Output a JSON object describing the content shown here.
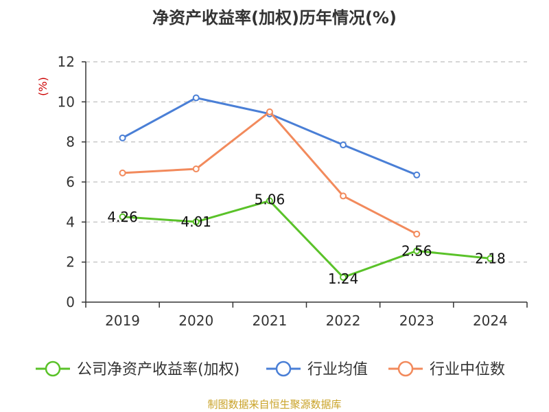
{
  "chart_data": {
    "type": "line",
    "title": "净资产收益率(加权)历年情况(%)",
    "ylabel": "(%)",
    "categories": [
      "2019",
      "2020",
      "2021",
      "2022",
      "2023",
      "2024"
    ],
    "ylim": [
      0,
      12
    ],
    "yticks": [
      "0",
      "2",
      "4",
      "6",
      "8",
      "10",
      "12"
    ],
    "grid": "horizontal-dashed",
    "legend_position": "bottom",
    "series": [
      {
        "name": "公司净资产收益率(加权)",
        "color": "#5ac229",
        "values": [
          4.26,
          4.01,
          5.06,
          1.24,
          2.56,
          2.18
        ],
        "labels": [
          "4.26",
          "4.01",
          "5.06",
          "1.24",
          "2.56",
          "2.18"
        ]
      },
      {
        "name": "行业均值",
        "color": "#4a7fd6",
        "values": [
          8.2,
          10.2,
          9.4,
          7.85,
          6.35,
          null
        ]
      },
      {
        "name": "行业中位数",
        "color": "#f28a5c",
        "values": [
          6.45,
          6.65,
          9.5,
          5.3,
          3.4,
          null
        ]
      }
    ]
  },
  "colors": {
    "unit": "#cc0000",
    "source": "#c9a227",
    "axis": "#333333",
    "grid": "#c8c8c8"
  },
  "source_text": "制图数据来自恒生聚源数据库"
}
